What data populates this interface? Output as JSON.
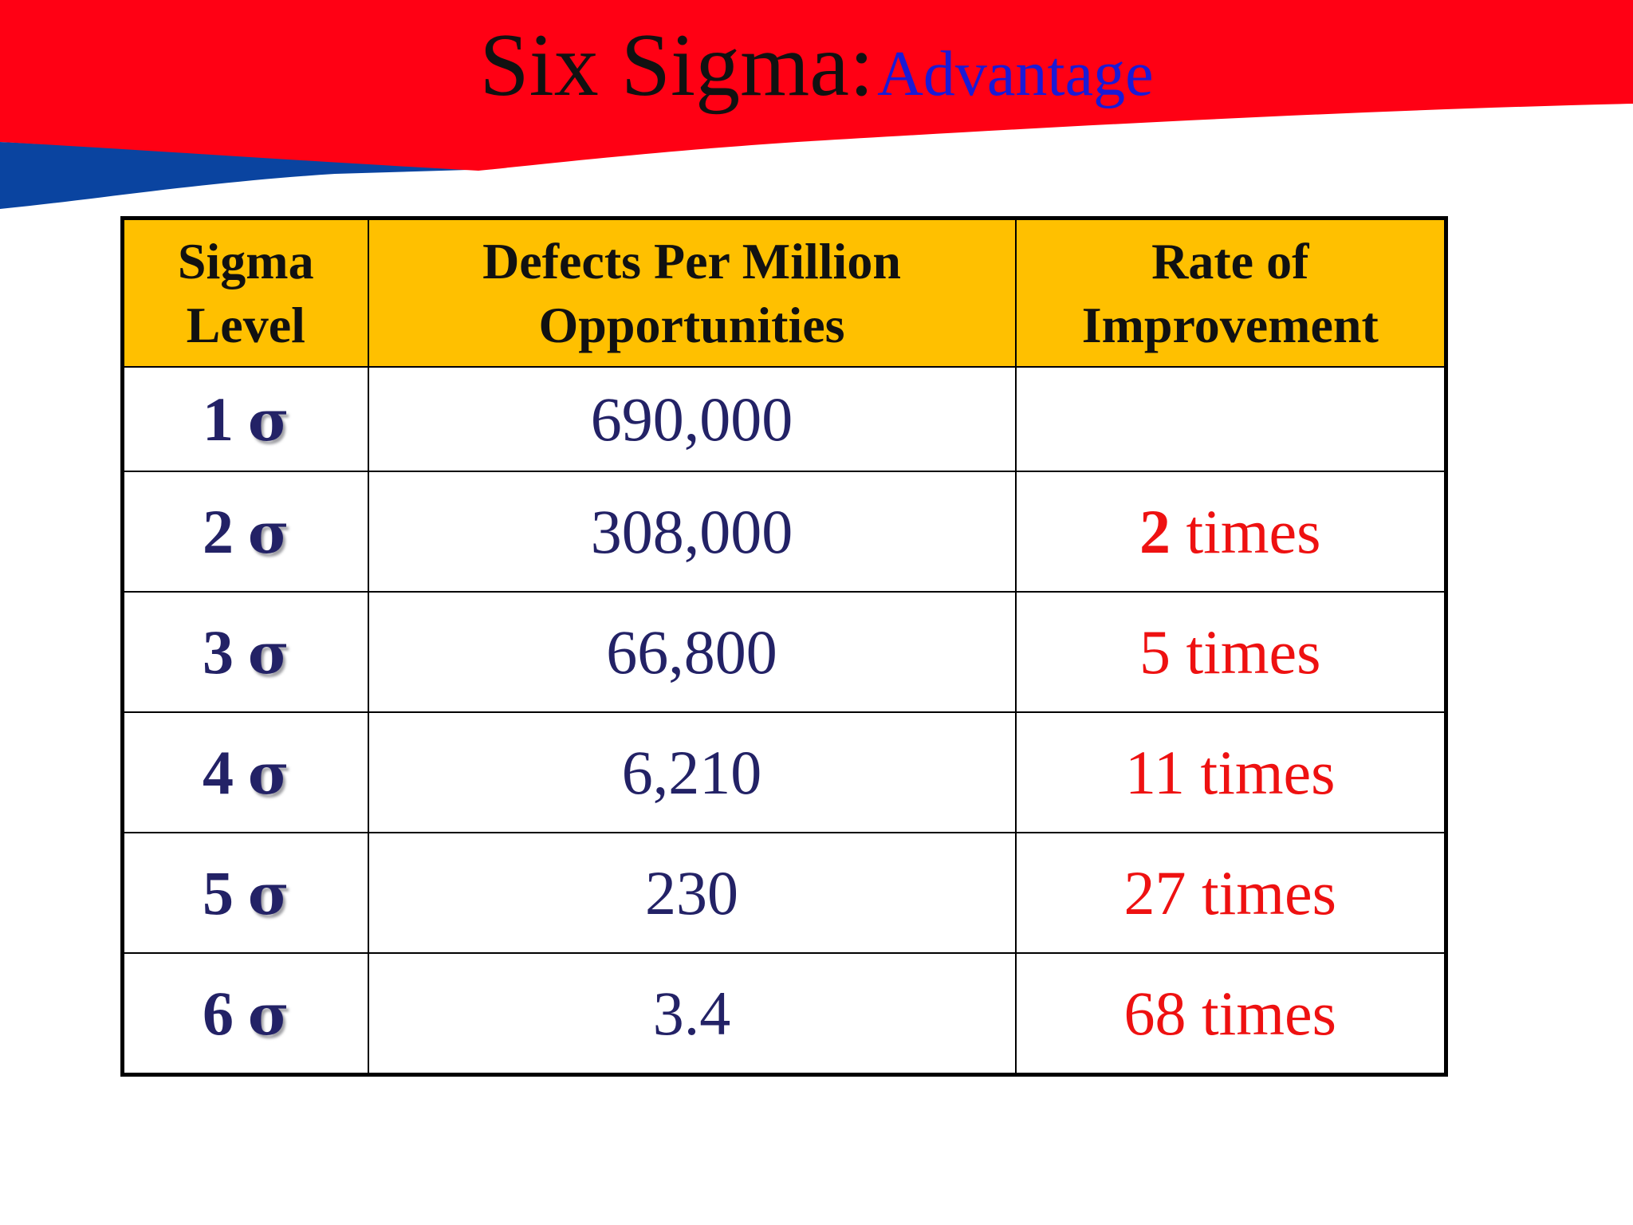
{
  "slide": {
    "title_main": "Six Sigma:",
    "title_sub": "Advantage"
  },
  "colors": {
    "banner_red": "#ff0014",
    "banner_blue": "#0a44a0",
    "header_fill": "#ffc000",
    "value_text": "#232266",
    "rate_text": "#ee1111",
    "subtitle_text": "#1a1ad6"
  },
  "table": {
    "headers": {
      "level": "Sigma Level",
      "dpmo": "Defects Per Million Opportunities",
      "rate": "Rate of Improvement"
    },
    "sigma_symbol": "σ",
    "times_label": "times",
    "rows": [
      {
        "level": "1",
        "dpmo": "690,000",
        "rate": ""
      },
      {
        "level": "2",
        "dpmo": "308,000",
        "rate": "2"
      },
      {
        "level": "3",
        "dpmo": "66,800",
        "rate": "5"
      },
      {
        "level": "4",
        "dpmo": "6,210",
        "rate": "11"
      },
      {
        "level": "5",
        "dpmo": "230",
        "rate": "27"
      },
      {
        "level": "6",
        "dpmo": "3.4",
        "rate": "68"
      }
    ]
  }
}
